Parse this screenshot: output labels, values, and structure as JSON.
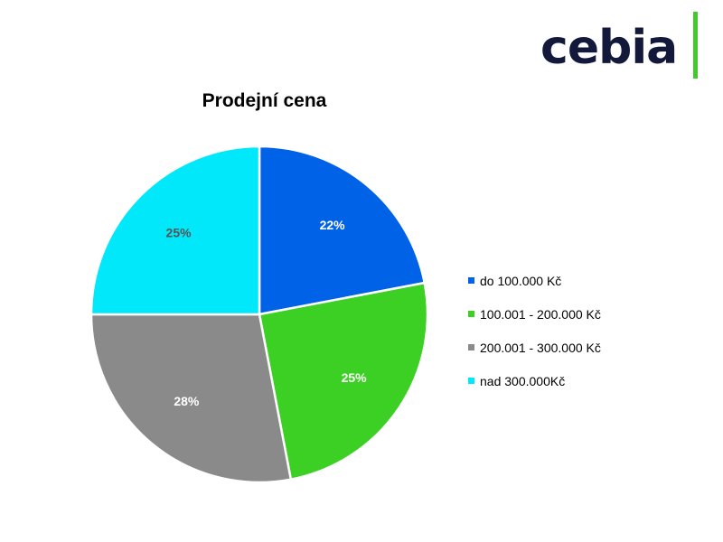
{
  "logo": {
    "text": "cebia",
    "text_color": "#12193a",
    "accent_color": "#3fcc2a"
  },
  "chart_data": {
    "type": "pie",
    "title": "Prodejní cena",
    "legend_position": "right",
    "slices": [
      {
        "label": "do 100.000 Kč",
        "value": 22,
        "display": "22%",
        "color": "#0062e6",
        "label_color": "#ffffff"
      },
      {
        "label": "100.001 - 200.000 Kč",
        "value": 25,
        "display": "25%",
        "color": "#3ccf24",
        "label_color": "#ffffff"
      },
      {
        "label": "200.001 - 300.000 Kč",
        "value": 28,
        "display": "28%",
        "color": "#8a8a8a",
        "label_color": "#ffffff"
      },
      {
        "label": "nad 300.000Kč",
        "value": 25,
        "display": "25%",
        "color": "#00e8fa",
        "label_color": "#555555"
      }
    ]
  }
}
